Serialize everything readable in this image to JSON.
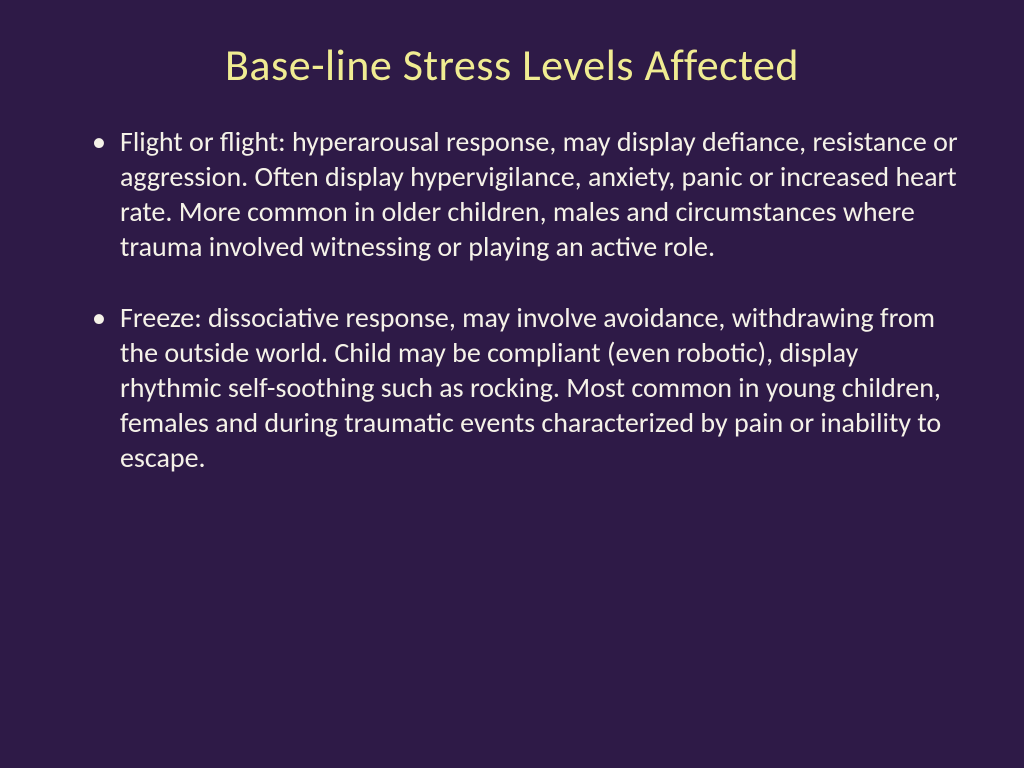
{
  "slide": {
    "title": "Base-line Stress Levels Affected",
    "bullets": [
      "Flight or flight:  hyperarousal response, may display defiance, resistance or aggression.  Often display hypervigilance, anxiety, panic or increased heart rate.  More common in older children, males and circumstances where trauma involved witnessing or playing an active role.",
      "Freeze:  dissociative response, may involve avoidance, withdrawing from the outside world. Child may be compliant (even robotic), display rhythmic self-soothing such as rocking.  Most common in young children, females and during traumatic events characterized by pain or inability to escape."
    ],
    "colors": {
      "background": "#2e1a47",
      "title": "#f0ec92",
      "body_text": "#f5f2e8"
    },
    "typography": {
      "title_fontsize": 44,
      "body_fontsize": 28,
      "font_family": "Calibri"
    }
  }
}
